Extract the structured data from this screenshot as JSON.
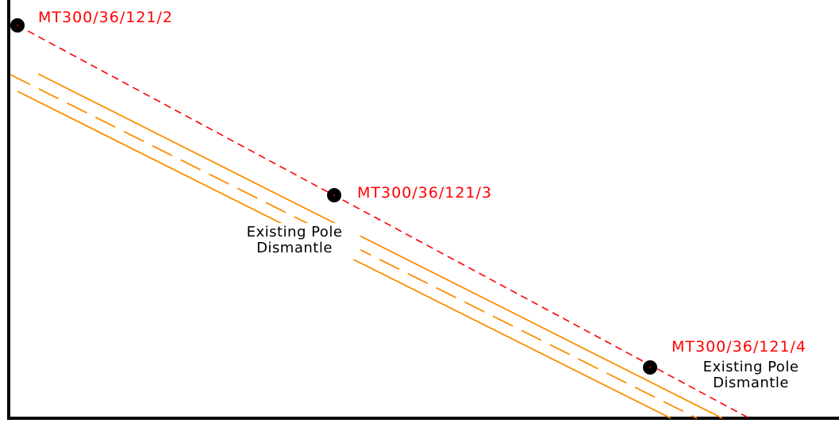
{
  "drawing": {
    "colors": {
      "frame": "#000000",
      "overhead_line": "#ff0000",
      "cable": "#ff8c00",
      "pole": "#000000",
      "label_red": "#ff0000",
      "note_black": "#000000"
    },
    "poles": [
      {
        "id": "pole-1",
        "label": "MT300/36/121/2"
      },
      {
        "id": "pole-2",
        "label": "MT300/36/121/3"
      },
      {
        "id": "pole-3",
        "label": "MT300/36/121/4"
      }
    ],
    "notes": [
      {
        "id": "note-pole-2",
        "line1": "Existing Pole",
        "line2": "Dismantle"
      },
      {
        "id": "note-pole-3",
        "line1": "Existing Pole",
        "line2": "Dismantle"
      }
    ]
  }
}
